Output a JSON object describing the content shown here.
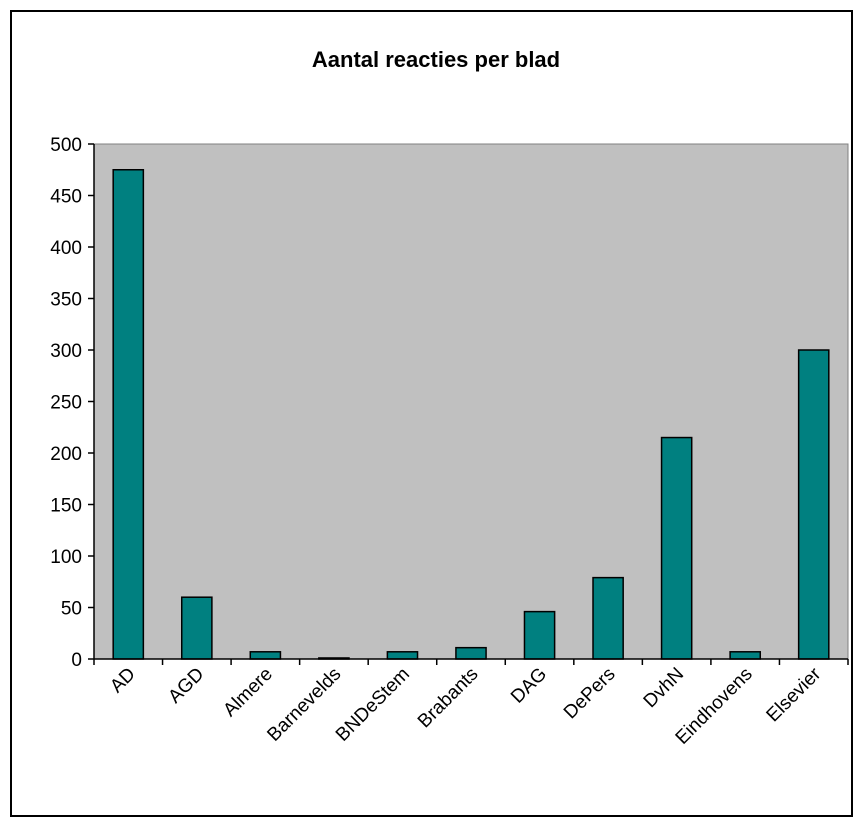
{
  "chart_data": {
    "type": "bar",
    "title": "Aantal reacties per blad",
    "xlabel": "",
    "ylabel": "",
    "categories": [
      "AD",
      "AGD",
      "Almere",
      "Barnevelds",
      "BNDeStem",
      "Brabants",
      "DAG",
      "DePers",
      "DvhN",
      "Eindhovens",
      "Elsevier"
    ],
    "values": [
      475,
      60,
      7,
      1,
      7,
      11,
      46,
      79,
      215,
      7,
      300
    ],
    "ylim": [
      0,
      500
    ],
    "yticks": [
      0,
      50,
      100,
      150,
      200,
      250,
      300,
      350,
      400,
      450,
      500
    ],
    "grid": false,
    "legend": "none",
    "colors": {
      "plot_background": "#c0c0c0",
      "bar_fill": "#008080",
      "bar_stroke": "#000000",
      "axis": "#000000"
    }
  }
}
